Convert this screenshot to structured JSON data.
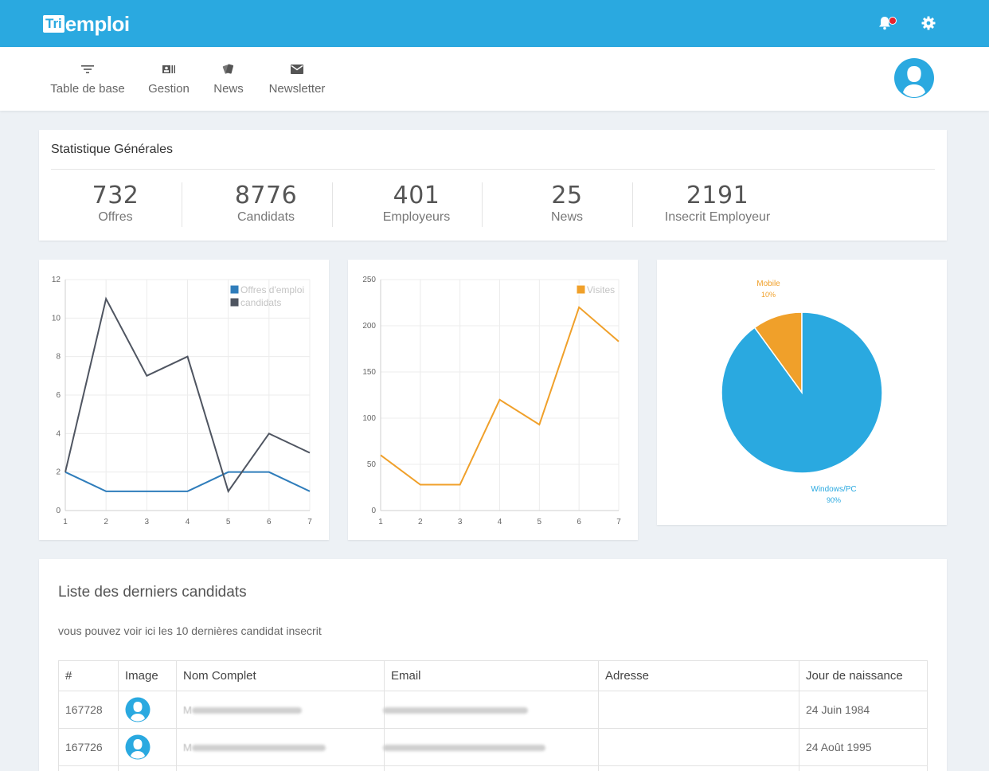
{
  "header": {
    "logo_box": "Tri",
    "logo_text": "emploi",
    "icons": [
      "bell-icon",
      "gear-icon"
    ],
    "brand_color": "#2aa9e0"
  },
  "nav": {
    "items": [
      {
        "label": "Table de base",
        "icon": "filter-icon"
      },
      {
        "label": "Gestion",
        "icon": "id-card-icon"
      },
      {
        "label": "News",
        "icon": "cards-icon"
      },
      {
        "label": "Newsletter",
        "icon": "envelope-icon"
      }
    ]
  },
  "stats": {
    "title": "Statistique Générales",
    "items": [
      {
        "value": "732",
        "label": "Offres"
      },
      {
        "value": "8776",
        "label": "Candidats"
      },
      {
        "value": "401",
        "label": "Employeurs"
      },
      {
        "value": "25",
        "label": "News"
      },
      {
        "value": "2191",
        "label": "Insecrit Employeur"
      }
    ]
  },
  "chart_data": [
    {
      "type": "line",
      "x": [
        1,
        2,
        3,
        4,
        5,
        6,
        7
      ],
      "ylim": [
        0,
        12
      ],
      "yticks": [
        0,
        2,
        4,
        6,
        8,
        10,
        12
      ],
      "series": [
        {
          "name": "Offres d'emploi",
          "color": "#2f7dbb",
          "values": [
            2,
            1,
            1,
            1,
            2,
            2,
            1
          ]
        },
        {
          "name": "candidats",
          "color": "#4f5561",
          "values": [
            2,
            11,
            7,
            8,
            1,
            4,
            3
          ]
        }
      ],
      "grid": true,
      "legend": "top-right"
    },
    {
      "type": "line",
      "x": [
        1,
        2,
        3,
        4,
        5,
        6,
        7
      ],
      "ylim": [
        0,
        250
      ],
      "yticks": [
        0,
        50,
        100,
        150,
        200,
        250
      ],
      "series": [
        {
          "name": "Visites",
          "color": "#f0a02a",
          "values": [
            60,
            28,
            28,
            120,
            93,
            220,
            183
          ]
        }
      ],
      "grid": true,
      "legend": "top-right"
    },
    {
      "type": "pie",
      "slices": [
        {
          "label": "Mobile",
          "percent_label": "10%",
          "value": 10,
          "color": "#f0a02a"
        },
        {
          "label": "Windows/PC",
          "percent_label": "90%",
          "value": 90,
          "color": "#2aa9e0"
        }
      ]
    }
  ],
  "list": {
    "title": "Liste des derniers candidats",
    "subtitle": "vous pouvez voir ici les 10 dernières candidat insecrit",
    "columns": [
      "#",
      "Image",
      "Nom Complet",
      "Email",
      "Adresse",
      "Jour de naissance"
    ],
    "rows": [
      {
        "id": "167728",
        "name_prefix": "M",
        "birth": "24 Juin 1984"
      },
      {
        "id": "167726",
        "name_prefix": "M",
        "birth": "24 Août 1995"
      }
    ]
  }
}
